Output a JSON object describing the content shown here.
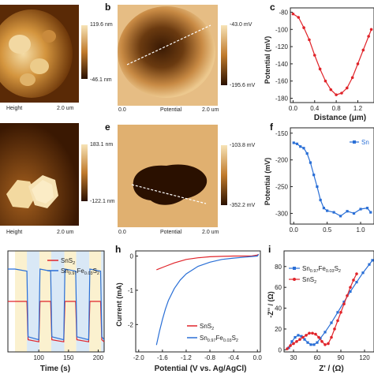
{
  "panels": {
    "a_top": {
      "scale_max": "119.6 nm",
      "scale_min": "-46.1 nm",
      "label": "Height",
      "scale": "2.0 um"
    },
    "a_bot": {
      "scale_max": "183.1 nm",
      "scale_min": "-122.1 nm",
      "label": "Height",
      "scale": "2.0 um"
    },
    "b": {
      "letter": "b",
      "scale_max": "-43.0 mV",
      "scale_min": "-195.6 mV",
      "origin": "0.0",
      "label": "Potential",
      "scale": "2.0 um"
    },
    "e": {
      "letter": "e",
      "scale_max": "-103.8 mV",
      "scale_min": "-352.2 mV",
      "origin": "0.0",
      "label": "Potential",
      "scale": "2.0 um"
    },
    "c": {
      "letter": "c",
      "ylabel": "Potential (mV)",
      "xlabel": "Distance (μm)"
    },
    "f": {
      "letter": "f",
      "ylabel": "Potential (mV)",
      "legend": "Sn"
    },
    "g": {
      "xlabel": "Time (s)"
    },
    "h": {
      "letter": "h",
      "ylabel": "Current (mA)",
      "xlabel": "Potential (V vs. Ag/AgCl)"
    },
    "i": {
      "letter": "i",
      "ylabel": "-Z'' / (Ω)",
      "xlabel": "Z' / (Ω)"
    }
  },
  "legend_g": {
    "sns2": "SnS",
    "sns2_sub": "2",
    "fe_main": "Sn",
    "fe_sub1": "0.97",
    "fe_mid": "Fe",
    "fe_sub2": "0.03",
    "fe_s": "S",
    "fe_sub3": "2"
  },
  "legend_h": {
    "sns2": "SnS",
    "sns2_sub": "2",
    "fe_main": "Sn",
    "fe_sub1": "0.97",
    "fe_mid": "Fe",
    "fe_sub2": "0.03",
    "fe_s": "S",
    "fe_sub3": "2"
  },
  "legend_i": {
    "fe_main": "Sn",
    "fe_sub1": "0.97",
    "fe_mid": "Fe",
    "fe_sub2": "0.03",
    "fe_s": "S",
    "fe_sub3": "2",
    "sns2": "SnS",
    "sns2_sub": "2"
  },
  "colors": {
    "red": "#e0242a",
    "blue": "#2a6fd6",
    "afm_dark": "#2a1000",
    "afm_light": "#f7e3b6"
  },
  "chart_data": [
    {
      "type": "line",
      "panel": "c",
      "x": [
        0.0,
        0.1,
        0.2,
        0.3,
        0.4,
        0.5,
        0.6,
        0.7,
        0.8,
        0.9,
        1.0,
        1.1,
        1.2,
        1.3,
        1.4,
        1.45
      ],
      "y": [
        -82,
        -86,
        -98,
        -112,
        -130,
        -146,
        -160,
        -170,
        -176,
        -174,
        -168,
        -156,
        -140,
        -124,
        -108,
        -100
      ],
      "xticks": [
        "0.0",
        "0.4",
        "0.8",
        "1.2"
      ],
      "yticks": [
        "-80",
        "-100",
        "-120",
        "-140",
        "-160",
        "-180"
      ],
      "xlim": [
        -0.05,
        1.5
      ],
      "ylim": [
        -185,
        -75
      ]
    },
    {
      "type": "line",
      "panel": "f",
      "x": [
        0.0,
        0.05,
        0.1,
        0.15,
        0.2,
        0.25,
        0.3,
        0.35,
        0.4,
        0.45,
        0.5,
        0.6,
        0.7,
        0.8,
        0.9,
        1.0,
        1.1,
        1.15
      ],
      "y": [
        -168,
        -170,
        -175,
        -178,
        -188,
        -205,
        -228,
        -250,
        -275,
        -290,
        -295,
        -298,
        -305,
        -296,
        -300,
        -292,
        -290,
        -298
      ],
      "xticks": [
        "0.0",
        "0.5",
        "1.0"
      ],
      "yticks": [
        "-150",
        "-200",
        "-250",
        "-300"
      ],
      "xlim": [
        -0.05,
        1.2
      ],
      "ylim": [
        -320,
        -140
      ]
    },
    {
      "type": "line",
      "panel": "g",
      "xticks": [
        "100",
        "150",
        "200"
      ],
      "xlim": [
        48,
        210
      ],
      "series": [
        {
          "name": "SnS2",
          "x": [
            48,
            60,
            80,
            82,
            100,
            102,
            120,
            122,
            142,
            144,
            162,
            164,
            184,
            186,
            204,
            206,
            210
          ],
          "y": [
            0.5,
            0.5,
            0.5,
            0.12,
            0.1,
            0.5,
            0.5,
            0.12,
            0.1,
            0.5,
            0.5,
            0.12,
            0.1,
            0.5,
            0.5,
            0.12,
            0.1
          ]
        },
        {
          "name": "Sn0.97Fe0.03S2",
          "x": [
            48,
            60,
            80,
            82,
            100,
            102,
            120,
            122,
            142,
            144,
            162,
            164,
            184,
            186,
            204,
            206,
            210
          ],
          "y": [
            0.82,
            0.82,
            0.8,
            0.15,
            0.12,
            0.82,
            0.8,
            0.15,
            0.12,
            0.82,
            0.8,
            0.15,
            0.12,
            0.82,
            0.8,
            0.15,
            0.12
          ]
        }
      ]
    },
    {
      "type": "line",
      "panel": "h",
      "xticks": [
        "-2.0",
        "-1.6",
        "-1.2",
        "-0.8",
        "-0.4",
        "0.0"
      ],
      "yticks": [
        "0",
        "-1",
        "-2"
      ],
      "xlim": [
        -2.05,
        0.05
      ],
      "ylim": [
        -2.8,
        0.15
      ],
      "series": [
        {
          "name": "SnS2",
          "x": [
            -1.7,
            -1.55,
            -1.4,
            -1.2,
            -1.0,
            -0.8,
            -0.6,
            -0.4,
            -0.2,
            -0.1,
            0.0,
            0.02
          ],
          "y": [
            -0.4,
            -0.3,
            -0.2,
            -0.1,
            -0.05,
            -0.02,
            -0.01,
            0.0,
            0.0,
            0.0,
            0.03,
            0.05
          ]
        },
        {
          "name": "Sn0.97Fe0.03S2",
          "x": [
            -1.7,
            -1.65,
            -1.6,
            -1.55,
            -1.5,
            -1.4,
            -1.3,
            -1.2,
            -1.0,
            -0.8,
            -0.6,
            -0.4,
            -0.2,
            0.0,
            0.02
          ],
          "y": [
            -2.6,
            -2.2,
            -1.85,
            -1.55,
            -1.3,
            -0.95,
            -0.7,
            -0.52,
            -0.3,
            -0.18,
            -0.1,
            -0.06,
            -0.03,
            0.0,
            0.05
          ]
        }
      ]
    },
    {
      "type": "scatter",
      "panel": "i",
      "xticks": [
        "30",
        "60",
        "90",
        "120"
      ],
      "yticks": [
        "0",
        "20",
        "40",
        "60",
        "80"
      ],
      "xlim": [
        18,
        132
      ],
      "ylim": [
        -2,
        95
      ],
      "series": [
        {
          "name": "Sn0.97Fe0.03S2",
          "x": [
            24,
            28,
            32,
            36,
            40,
            44,
            48,
            52,
            56,
            60,
            64,
            70,
            78,
            86,
            94,
            102,
            110,
            118,
            126,
            130
          ],
          "y": [
            2,
            8,
            12,
            14,
            13,
            10,
            7,
            5,
            5,
            7,
            11,
            17,
            26,
            36,
            46,
            56,
            65,
            74,
            82,
            86
          ]
        },
        {
          "name": "SnS2",
          "x": [
            22,
            26,
            30,
            34,
            38,
            42,
            46,
            50,
            54,
            58,
            62,
            66,
            70,
            74,
            78,
            82,
            86,
            90,
            94,
            98,
            102,
            106,
            110
          ],
          "y": [
            1,
            4,
            6,
            8,
            10,
            12,
            14,
            16,
            16,
            15,
            12,
            8,
            5,
            6,
            12,
            20,
            28,
            36,
            44,
            52,
            60,
            67,
            73
          ]
        }
      ]
    }
  ]
}
